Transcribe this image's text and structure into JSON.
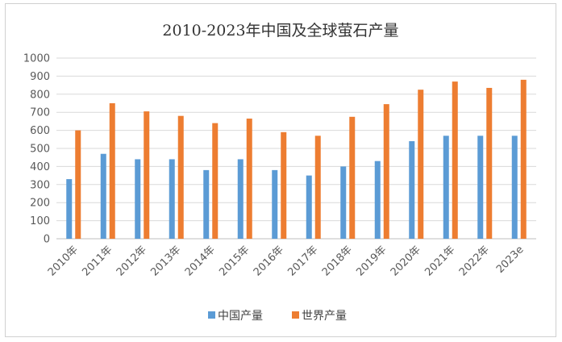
{
  "chart_data": {
    "type": "bar",
    "title": "2010-2023年中国及全球萤石产量",
    "xlabel": "",
    "ylabel": "",
    "ylim": [
      0,
      1000
    ],
    "yticks": [
      0,
      100,
      200,
      300,
      400,
      500,
      600,
      700,
      800,
      900,
      1000
    ],
    "grid": true,
    "legend_position": "bottom",
    "categories": [
      "2010年",
      "2011年",
      "2012年",
      "2013年",
      "2014年",
      "2015年",
      "2016年",
      "2017年",
      "2018年",
      "2019年",
      "2020年",
      "2021年",
      "2022年",
      "2023e"
    ],
    "series": [
      {
        "name": "中国产量",
        "color": "#5b9bd5",
        "values": [
          330,
          470,
          440,
          440,
          380,
          440,
          380,
          350,
          400,
          430,
          540,
          570,
          570,
          570
        ]
      },
      {
        "name": "世界产量",
        "color": "#ed7d31",
        "values": [
          600,
          750,
          705,
          680,
          640,
          665,
          590,
          570,
          675,
          745,
          825,
          870,
          835,
          880
        ]
      }
    ]
  }
}
